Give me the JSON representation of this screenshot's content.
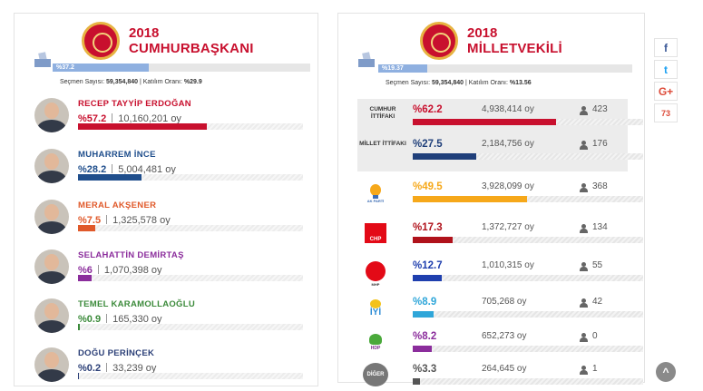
{
  "president": {
    "year": "2018",
    "title": "CUMHURBAŞKANI",
    "turnout_bar_label": "%37.2",
    "turnout_fraction": 0.372,
    "voters_label": "Seçmen Sayısı:",
    "voters_value": "59,354,840",
    "turnout_label": "Katılım Oranı:",
    "turnout_value": "%29.9",
    "candidates": [
      {
        "name": "RECEP TAYYİP ERDOĞAN",
        "pct": "%57.2",
        "votes": "10,160,201 oy",
        "share": 0.572,
        "color": "#c8102e"
      },
      {
        "name": "MUHARREM İNCE",
        "pct": "%28.2",
        "votes": "5,004,481 oy",
        "share": 0.282,
        "color": "#1f4e8c"
      },
      {
        "name": "MERAL AKŞENER",
        "pct": "%7.5",
        "votes": "1,325,578 oy",
        "share": 0.075,
        "color": "#e0592a"
      },
      {
        "name": "SELAHATTİN DEMİRTAŞ",
        "pct": "%6",
        "votes": "1,070,398 oy",
        "share": 0.06,
        "color": "#8b2d9c"
      },
      {
        "name": "TEMEL KARAMOLLAOĞLU",
        "pct": "%0.9",
        "votes": "165,330 oy",
        "share": 0.009,
        "color": "#3b8a3a"
      },
      {
        "name": "DOĞU PERİNÇEK",
        "pct": "%0.2",
        "votes": "33,239 oy",
        "share": 0.002,
        "color": "#2b3f77"
      }
    ]
  },
  "parliament": {
    "year": "2018",
    "title": "MİLLETVEKİLİ",
    "turnout_bar_label": "%19.37",
    "turnout_fraction": 0.1937,
    "voters_label": "Seçmen Sayısı:",
    "voters_value": "59,354,840",
    "turnout_label": "Katılım Oranı:",
    "turnout_value": "%13.56",
    "rows": [
      {
        "label": "CUMHUR İTTİFAKI",
        "logo": "",
        "pct": "%62.2",
        "votes": "4,938,414 oy",
        "seats": "423",
        "share": 0.622,
        "color": "#c8102e"
      },
      {
        "label": "MİLLET İTTİFAKI",
        "logo": "",
        "pct": "%27.5",
        "votes": "2,184,756 oy",
        "seats": "176",
        "share": 0.275,
        "color": "#1f3f7a"
      },
      {
        "label": "",
        "logo": "AK PARTİ",
        "pct": "%49.5",
        "votes": "3,928,099 oy",
        "seats": "368",
        "share": 0.495,
        "color": "#f6a81a"
      },
      {
        "label": "",
        "logo": "CHP",
        "pct": "%17.3",
        "votes": "1,372,727 oy",
        "seats": "134",
        "share": 0.173,
        "color": "#b0121b"
      },
      {
        "label": "",
        "logo": "MHP",
        "pct": "%12.7",
        "votes": "1,010,315 oy",
        "seats": "55",
        "share": 0.127,
        "color": "#1f3fae"
      },
      {
        "label": "",
        "logo": "İYİ",
        "pct": "%8.9",
        "votes": "705,268 oy",
        "seats": "42",
        "share": 0.089,
        "color": "#2fa6d9"
      },
      {
        "label": "",
        "logo": "HDP",
        "pct": "%8.2",
        "votes": "652,273 oy",
        "seats": "0",
        "share": 0.082,
        "color": "#8b2d9c"
      },
      {
        "label": "",
        "logo": "DİĞER",
        "pct": "%3.3",
        "votes": "264,645 oy",
        "seats": "1",
        "share": 0.033,
        "color": "#555555"
      }
    ]
  },
  "social": {
    "facebook": "f",
    "twitter": "t",
    "googleplus": "G+",
    "count": "73",
    "scroll_top": "^"
  }
}
